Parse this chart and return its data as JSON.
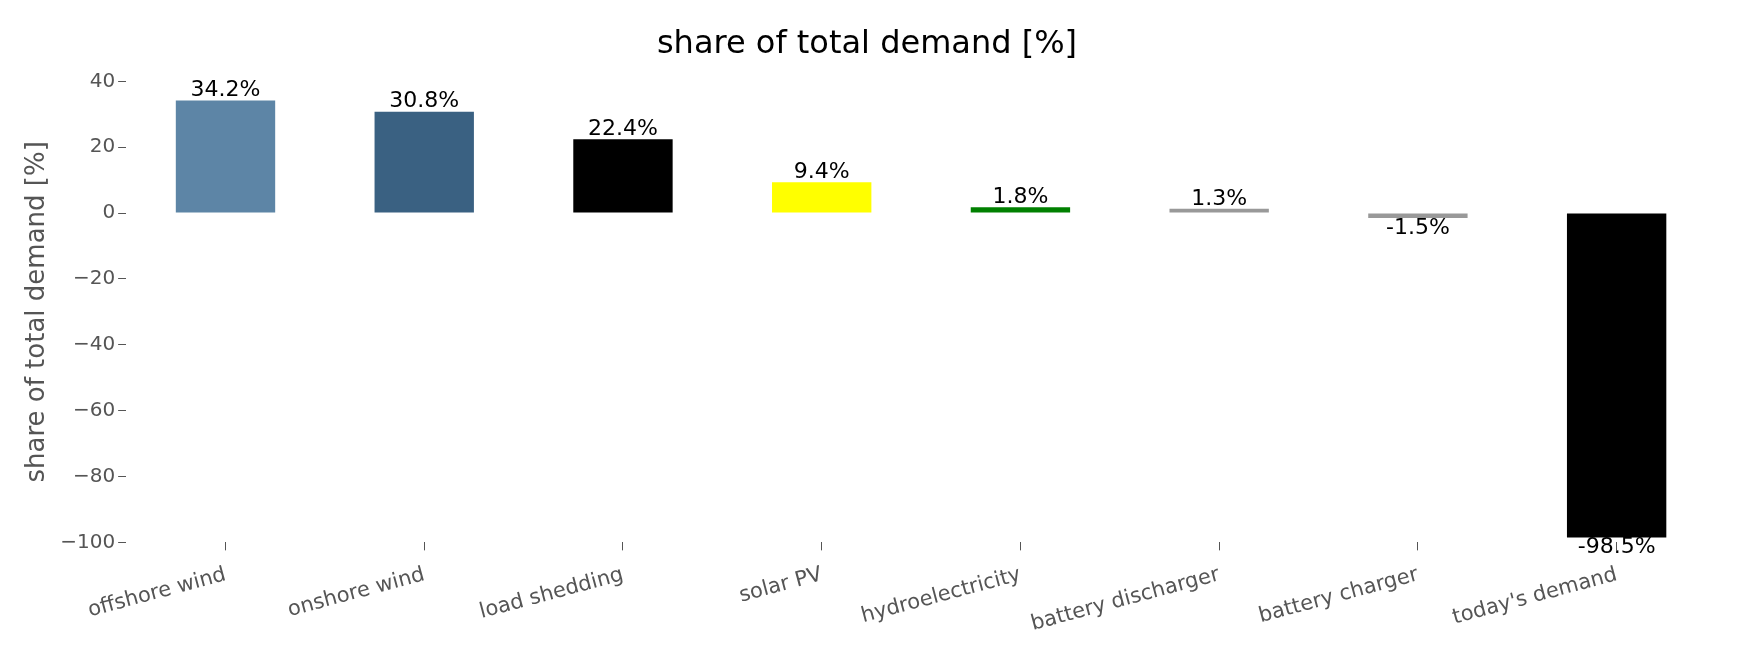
{
  "chart_data": {
    "type": "bar",
    "title": "share of total demand [%]",
    "ylabel": "share of total demand [%]",
    "categories": [
      "offshore wind",
      "onshore wind",
      "load shedding",
      "solar PV",
      "hydroelectricity",
      "battery discharger",
      "battery charger",
      "today's demand"
    ],
    "values": [
      34.2,
      30.8,
      22.4,
      9.4,
      1.8,
      1.3,
      -1.5,
      -98.5
    ],
    "colors": [
      "#5d85a6",
      "#3a6182",
      "#000000",
      "#ffff00",
      "#008000",
      "#999999",
      "#999999",
      "#000000"
    ],
    "value_labels": [
      "34.2%",
      "30.8%",
      "22.4%",
      "9.4%",
      "1.8%",
      "1.3%",
      "-1.5%",
      "-98.5%"
    ],
    "ylim": [
      -100,
      40
    ],
    "yticks": [
      {
        "value": -100,
        "label": "−100"
      },
      {
        "value": -80,
        "label": "−80"
      },
      {
        "value": -60,
        "label": "−60"
      },
      {
        "value": -40,
        "label": "−40"
      },
      {
        "value": -20,
        "label": "−20"
      },
      0,
      20,
      40
    ],
    "grid": false,
    "legend": false
  }
}
